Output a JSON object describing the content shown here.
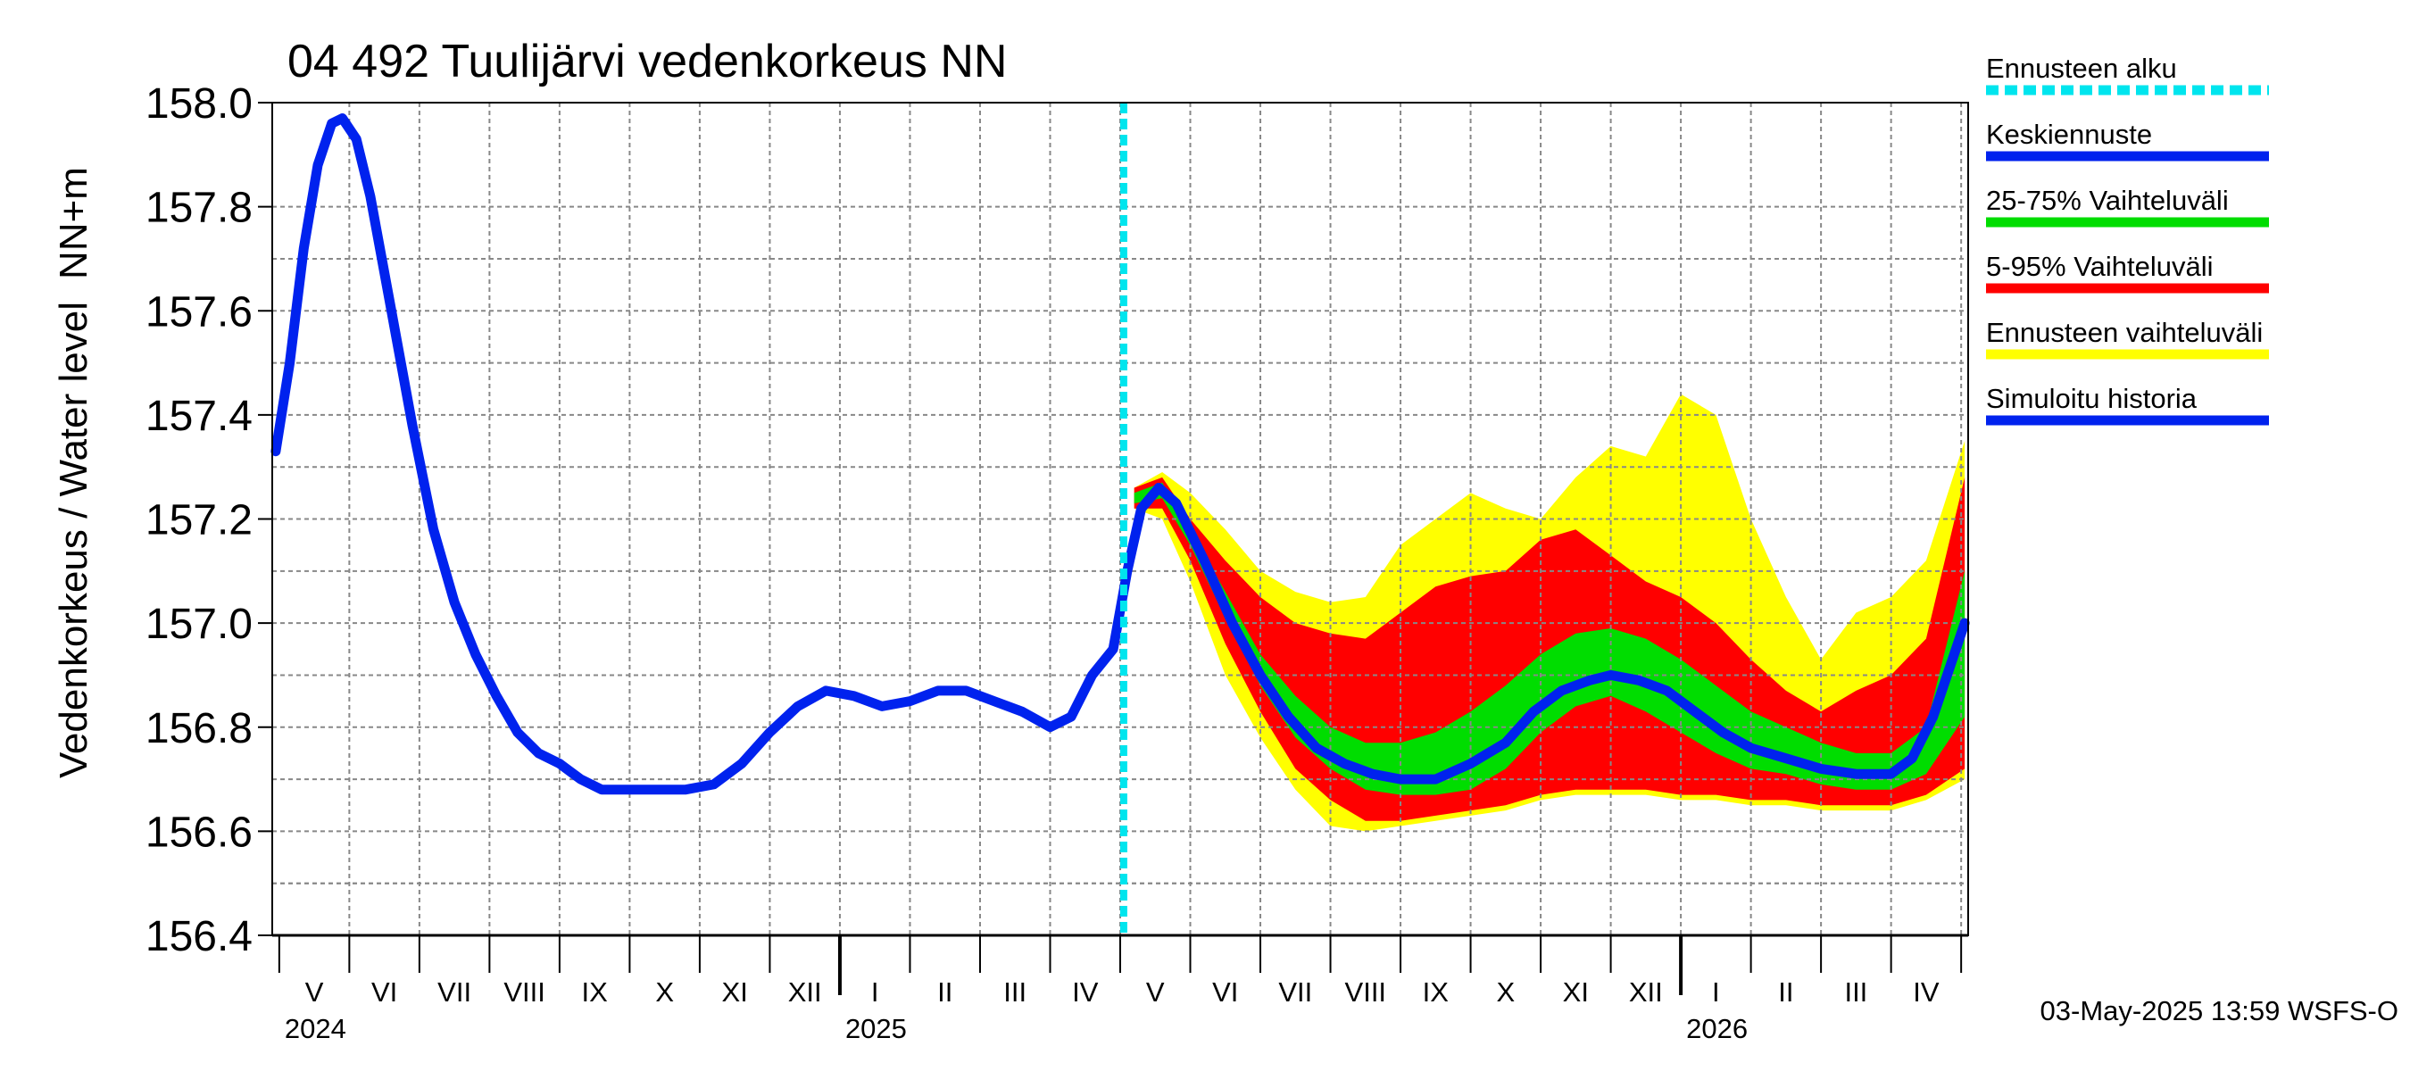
{
  "chart_data": {
    "type": "line",
    "title": "04 492 Tuulijärvi vedenkorkeus NN",
    "ylabel_main": "Vedenkorkeus / Water level",
    "ylabel_unit": "NN+m",
    "ylim": [
      156.4,
      158.0
    ],
    "yticks": [
      "156.4",
      "156.6",
      "156.8",
      "157.0",
      "157.2",
      "157.4",
      "157.6",
      "157.8",
      "158.0"
    ],
    "x_unit": "month index (0 = 1 May 2024)",
    "xlim": [
      -0.1,
      24.1
    ],
    "months": [
      "V",
      "VI",
      "VII",
      "VIII",
      "IX",
      "X",
      "XI",
      "XII",
      "I",
      "II",
      "III",
      "IV",
      "V",
      "VI",
      "VII",
      "VIII",
      "IX",
      "X",
      "XI",
      "XII",
      "I",
      "II",
      "III",
      "IV"
    ],
    "years": [
      {
        "label": "2024",
        "at": 0
      },
      {
        "label": "2025",
        "at": 8
      },
      {
        "label": "2026",
        "at": 20
      }
    ],
    "forecast_start": 12.05,
    "legend": [
      {
        "label": "Ennusteen alku",
        "color": "#00e5ee",
        "style": "dashed"
      },
      {
        "label": "Keskiennuste",
        "color": "#0022ee",
        "style": "solid"
      },
      {
        "label": "25-75% Vaihteluväli",
        "color": "#00dd00",
        "style": "solid"
      },
      {
        "label": "5-95% Vaihteluväli",
        "color": "#ff0000",
        "style": "solid"
      },
      {
        "label": "Ennusteen vaihteluväli",
        "color": "#ffff00",
        "style": "solid"
      },
      {
        "label": "Simuloitu historia",
        "color": "#0022ee",
        "style": "solid"
      }
    ],
    "series": [
      {
        "name": "Simuloitu historia",
        "color": "#0022ee",
        "points": [
          [
            -0.05,
            157.33
          ],
          [
            0.15,
            157.5
          ],
          [
            0.35,
            157.72
          ],
          [
            0.55,
            157.88
          ],
          [
            0.75,
            157.96
          ],
          [
            0.9,
            157.97
          ],
          [
            1.1,
            157.93
          ],
          [
            1.3,
            157.82
          ],
          [
            1.6,
            157.6
          ],
          [
            1.9,
            157.38
          ],
          [
            2.2,
            157.18
          ],
          [
            2.5,
            157.04
          ],
          [
            2.8,
            156.94
          ],
          [
            3.1,
            156.86
          ],
          [
            3.4,
            156.79
          ],
          [
            3.7,
            156.75
          ],
          [
            4.0,
            156.73
          ],
          [
            4.3,
            156.7
          ],
          [
            4.6,
            156.68
          ],
          [
            5.0,
            156.68
          ],
          [
            5.4,
            156.68
          ],
          [
            5.8,
            156.68
          ],
          [
            6.2,
            156.69
          ],
          [
            6.6,
            156.73
          ],
          [
            7.0,
            156.79
          ],
          [
            7.4,
            156.84
          ],
          [
            7.8,
            156.87
          ],
          [
            8.2,
            156.86
          ],
          [
            8.6,
            156.84
          ],
          [
            9.0,
            156.85
          ],
          [
            9.4,
            156.87
          ],
          [
            9.8,
            156.87
          ],
          [
            10.2,
            156.85
          ],
          [
            10.6,
            156.83
          ],
          [
            11.0,
            156.8
          ],
          [
            11.3,
            156.82
          ],
          [
            11.6,
            156.9
          ],
          [
            11.9,
            156.95
          ],
          [
            12.1,
            157.1
          ],
          [
            12.3,
            157.22
          ],
          [
            12.55,
            157.26
          ]
        ]
      },
      {
        "name": "Keskiennuste",
        "color": "#0022ee",
        "points": [
          [
            12.55,
            157.26
          ],
          [
            12.8,
            157.23
          ],
          [
            13.2,
            157.12
          ],
          [
            13.6,
            157.0
          ],
          [
            14.0,
            156.9
          ],
          [
            14.4,
            156.82
          ],
          [
            14.8,
            156.76
          ],
          [
            15.2,
            156.73
          ],
          [
            15.6,
            156.71
          ],
          [
            16.0,
            156.7
          ],
          [
            16.5,
            156.7
          ],
          [
            17.0,
            156.73
          ],
          [
            17.5,
            156.77
          ],
          [
            17.9,
            156.83
          ],
          [
            18.3,
            156.87
          ],
          [
            18.7,
            156.89
          ],
          [
            19.0,
            156.9
          ],
          [
            19.4,
            156.89
          ],
          [
            19.8,
            156.87
          ],
          [
            20.2,
            156.83
          ],
          [
            20.6,
            156.79
          ],
          [
            21.0,
            156.76
          ],
          [
            21.5,
            156.74
          ],
          [
            22.0,
            156.72
          ],
          [
            22.5,
            156.71
          ],
          [
            23.0,
            156.71
          ],
          [
            23.3,
            156.74
          ],
          [
            23.6,
            156.82
          ],
          [
            23.85,
            156.92
          ],
          [
            24.05,
            157.0
          ]
        ]
      }
    ],
    "bands": [
      {
        "name": "Ennusteen vaihteluväli",
        "color": "#ffff00",
        "x": [
          12.2,
          12.6,
          13.0,
          13.5,
          14.0,
          14.5,
          15.0,
          15.5,
          16.0,
          16.5,
          17.0,
          17.5,
          18.0,
          18.5,
          19.0,
          19.5,
          20.0,
          20.5,
          21.0,
          21.5,
          22.0,
          22.5,
          23.0,
          23.5,
          24.05
        ],
        "low": [
          157.22,
          157.2,
          157.08,
          156.9,
          156.78,
          156.68,
          156.61,
          156.6,
          156.61,
          156.62,
          156.63,
          156.64,
          156.66,
          156.67,
          156.67,
          156.67,
          156.66,
          156.66,
          156.65,
          156.65,
          156.64,
          156.64,
          156.64,
          156.66,
          156.7
        ],
        "high": [
          157.26,
          157.29,
          157.25,
          157.18,
          157.1,
          157.06,
          157.04,
          157.05,
          157.15,
          157.2,
          157.25,
          157.22,
          157.2,
          157.28,
          157.34,
          157.32,
          157.44,
          157.4,
          157.2,
          157.05,
          156.93,
          157.02,
          157.05,
          157.12,
          157.35
        ]
      },
      {
        "name": "5-95% Vaihteluväli",
        "color": "#ff0000",
        "x": [
          12.2,
          12.6,
          13.0,
          13.5,
          14.0,
          14.5,
          15.0,
          15.5,
          16.0,
          16.5,
          17.0,
          17.5,
          18.0,
          18.5,
          19.0,
          19.5,
          20.0,
          20.5,
          21.0,
          21.5,
          22.0,
          22.5,
          23.0,
          23.5,
          24.05
        ],
        "low": [
          157.22,
          157.22,
          157.12,
          156.96,
          156.83,
          156.72,
          156.66,
          156.62,
          156.62,
          156.63,
          156.64,
          156.65,
          156.67,
          156.68,
          156.68,
          156.68,
          156.67,
          156.67,
          156.66,
          156.66,
          156.65,
          156.65,
          156.65,
          156.67,
          156.72
        ],
        "high": [
          157.26,
          157.28,
          157.2,
          157.12,
          157.05,
          157.0,
          156.98,
          156.97,
          157.02,
          157.07,
          157.09,
          157.1,
          157.16,
          157.18,
          157.13,
          157.08,
          157.05,
          157.0,
          156.93,
          156.87,
          156.83,
          156.87,
          156.9,
          156.97,
          157.28
        ]
      },
      {
        "name": "25-75% Vaihteluväli",
        "color": "#00dd00",
        "x": [
          12.2,
          12.6,
          13.0,
          13.5,
          14.0,
          14.5,
          15.0,
          15.5,
          16.0,
          16.5,
          17.0,
          17.5,
          18.0,
          18.5,
          19.0,
          19.5,
          20.0,
          20.5,
          21.0,
          21.5,
          22.0,
          22.5,
          23.0,
          23.5,
          24.05
        ],
        "low": [
          157.23,
          157.24,
          157.15,
          157.01,
          156.88,
          156.78,
          156.72,
          156.68,
          156.67,
          156.67,
          156.68,
          156.72,
          156.79,
          156.84,
          156.86,
          156.83,
          156.79,
          156.75,
          156.72,
          156.71,
          156.69,
          156.68,
          156.68,
          156.71,
          156.82
        ],
        "high": [
          157.25,
          157.27,
          157.18,
          157.06,
          156.94,
          156.86,
          156.8,
          156.77,
          156.77,
          156.79,
          156.83,
          156.88,
          156.94,
          156.98,
          156.99,
          156.97,
          156.93,
          156.88,
          156.83,
          156.8,
          156.77,
          156.75,
          156.75,
          156.8,
          157.1
        ]
      }
    ],
    "timestamp": "03-May-2025 13:59 WSFS-O"
  }
}
